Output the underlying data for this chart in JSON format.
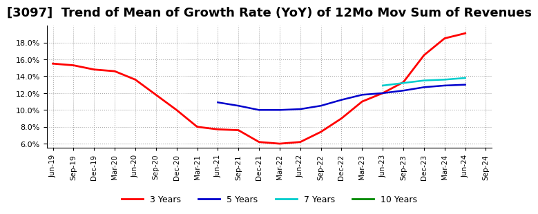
{
  "title": "[3097]  Trend of Mean of Growth Rate (YoY) of 12Mo Mov Sum of Revenues",
  "title_fontsize": 13,
  "background_color": "#ffffff",
  "grid_color": "#aaaaaa",
  "ylim": [
    0.055,
    0.2
  ],
  "yticks": [
    0.06,
    0.08,
    0.1,
    0.12,
    0.14,
    0.16,
    0.18
  ],
  "series": {
    "3 Years": {
      "color": "#ff0000",
      "x": [
        0,
        1,
        2,
        3,
        4,
        5,
        6,
        7,
        8,
        9,
        10,
        11,
        12,
        13,
        14,
        15,
        16,
        17,
        18,
        19,
        20
      ],
      "y": [
        0.155,
        0.153,
        0.148,
        0.146,
        0.136,
        0.118,
        0.1,
        0.08,
        0.077,
        0.076,
        0.062,
        0.06,
        0.062,
        0.074,
        0.09,
        0.11,
        0.12,
        0.133,
        0.165,
        0.185,
        0.191
      ]
    },
    "5 Years": {
      "color": "#0000cc",
      "x": [
        8,
        9,
        10,
        11,
        12,
        13,
        14,
        15,
        16,
        17,
        18,
        19,
        20
      ],
      "y": [
        0.109,
        0.105,
        0.1,
        0.1,
        0.101,
        0.105,
        0.112,
        0.118,
        0.12,
        0.123,
        0.127,
        0.129,
        0.13
      ]
    },
    "7 Years": {
      "color": "#00cccc",
      "x": [
        16,
        17,
        18,
        19,
        20
      ],
      "y": [
        0.129,
        0.132,
        0.135,
        0.136,
        0.138
      ]
    },
    "10 Years": {
      "color": "#008800",
      "x": [],
      "y": []
    }
  },
  "xtick_labels": [
    "Jun-19",
    "Sep-19",
    "Dec-19",
    "Mar-20",
    "Jun-20",
    "Sep-20",
    "Dec-20",
    "Mar-21",
    "Jun-21",
    "Sep-21",
    "Dec-21",
    "Mar-22",
    "Jun-22",
    "Sep-22",
    "Dec-22",
    "Mar-23",
    "Jun-23",
    "Sep-23",
    "Dec-23",
    "Mar-24",
    "Jun-24",
    "Sep-24"
  ],
  "legend_labels": [
    "3 Years",
    "5 Years",
    "7 Years",
    "10 Years"
  ],
  "legend_colors": [
    "#ff0000",
    "#0000cc",
    "#00cccc",
    "#008800"
  ],
  "linewidths": {
    "3 Years": 2.0,
    "5 Years": 1.8,
    "7 Years": 1.8,
    "10 Years": 1.8
  }
}
